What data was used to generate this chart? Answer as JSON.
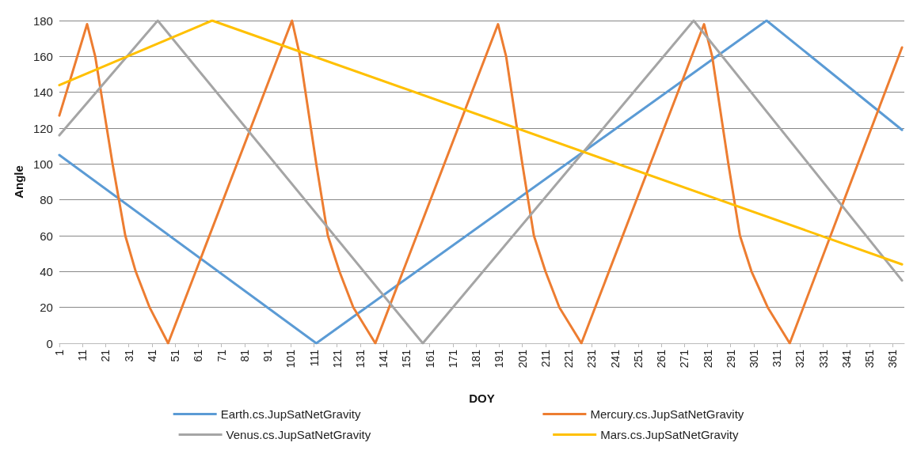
{
  "chart_data": {
    "type": "line",
    "xlabel": "DOY",
    "ylabel": "Angle",
    "xlim": [
      1,
      366
    ],
    "xticks": [
      1,
      11,
      21,
      31,
      41,
      51,
      61,
      71,
      81,
      91,
      101,
      111,
      121,
      131,
      141,
      151,
      161,
      171,
      181,
      191,
      201,
      211,
      221,
      231,
      241,
      251,
      261,
      271,
      281,
      291,
      301,
      311,
      321,
      331,
      341,
      351,
      361
    ],
    "ylim": [
      0,
      180
    ],
    "yticks": [
      0,
      20,
      40,
      60,
      80,
      100,
      120,
      140,
      160,
      180
    ],
    "grid": "y",
    "legend": "bottom",
    "marker": "none",
    "line_style": "solid",
    "series": [
      {
        "name": "Earth.cs.JupSatNetGravity",
        "color": "#5b9bd5",
        "x": [
          1,
          112,
          306.5,
          365
        ],
        "values": [
          105,
          0,
          180,
          119
        ]
      },
      {
        "name": "Mercury.cs.JupSatNetGravity",
        "color": "#ed7d31",
        "x": [
          1,
          13,
          16.5,
          24,
          29.5,
          34,
          40,
          48,
          101.5,
          105,
          112,
          117,
          122,
          128,
          137.5,
          190.5,
          194,
          201,
          206,
          211,
          217,
          226.5,
          279.5,
          283,
          290,
          295,
          300,
          307,
          316.5,
          365
        ],
        "values": [
          127,
          178,
          160,
          100,
          60,
          40,
          20,
          0,
          180,
          160,
          100,
          60,
          40,
          20,
          0,
          178,
          160,
          100,
          60,
          40,
          20,
          0,
          178,
          160,
          100,
          60,
          40,
          20,
          0,
          165
        ]
      },
      {
        "name": "Venus.cs.JupSatNetGravity",
        "color": "#a5a5a5",
        "x": [
          1,
          43.5,
          158,
          275,
          365
        ],
        "values": [
          116,
          180,
          0,
          180,
          35
        ]
      },
      {
        "name": "Mars.cs.JupSatNetGravity",
        "color": "#ffc000",
        "x": [
          1,
          67,
          365
        ],
        "values": [
          144,
          180,
          44
        ]
      }
    ]
  }
}
